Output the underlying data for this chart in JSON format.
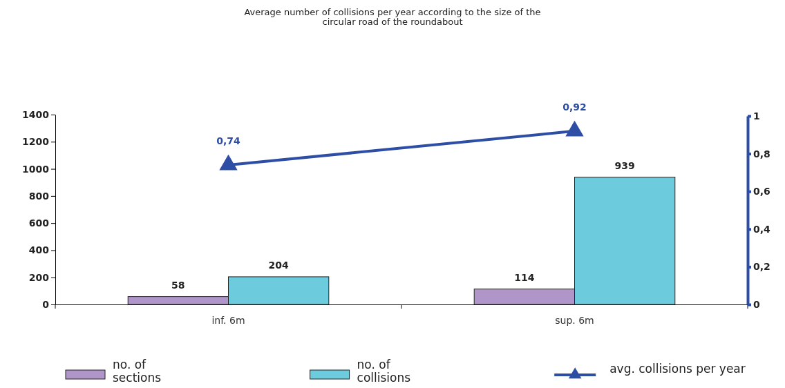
{
  "chart_data": {
    "type": "bar",
    "title": "Average number of collisions per year according to the size of the circular road of the roundabout",
    "categories": [
      "inf. 6m",
      "sup. 6m"
    ],
    "series": [
      {
        "name": "no. of sections",
        "color": "#b096c8",
        "values": [
          58,
          114
        ],
        "value_labels": [
          "58",
          "114"
        ]
      },
      {
        "name": "no. of collisions",
        "color": "#6ccbdc",
        "values": [
          204,
          939
        ],
        "value_labels": [
          "204",
          "939"
        ]
      },
      {
        "name": "avg. collisions per year",
        "type": "line",
        "axis": "y2",
        "color": "#2e4ea5",
        "marker": "triangle",
        "values": [
          0.74,
          0.92
        ],
        "value_labels": [
          "0,74",
          "0,92"
        ]
      }
    ],
    "ylim": [
      0,
      1400
    ],
    "yticks": [
      0,
      200,
      400,
      600,
      800,
      1000,
      1200,
      1400
    ],
    "y2lim": [
      0,
      1
    ],
    "y2ticks": [
      {
        "value": 0,
        "label": "0"
      },
      {
        "value": 0.2,
        "label": "0,2"
      },
      {
        "value": 0.4,
        "label": "0,4"
      },
      {
        "value": 0.6,
        "label": "0,6"
      },
      {
        "value": 0.8,
        "label": "0,8"
      },
      {
        "value": 1,
        "label": "1"
      }
    ],
    "legend": "bottom",
    "grid": false
  }
}
